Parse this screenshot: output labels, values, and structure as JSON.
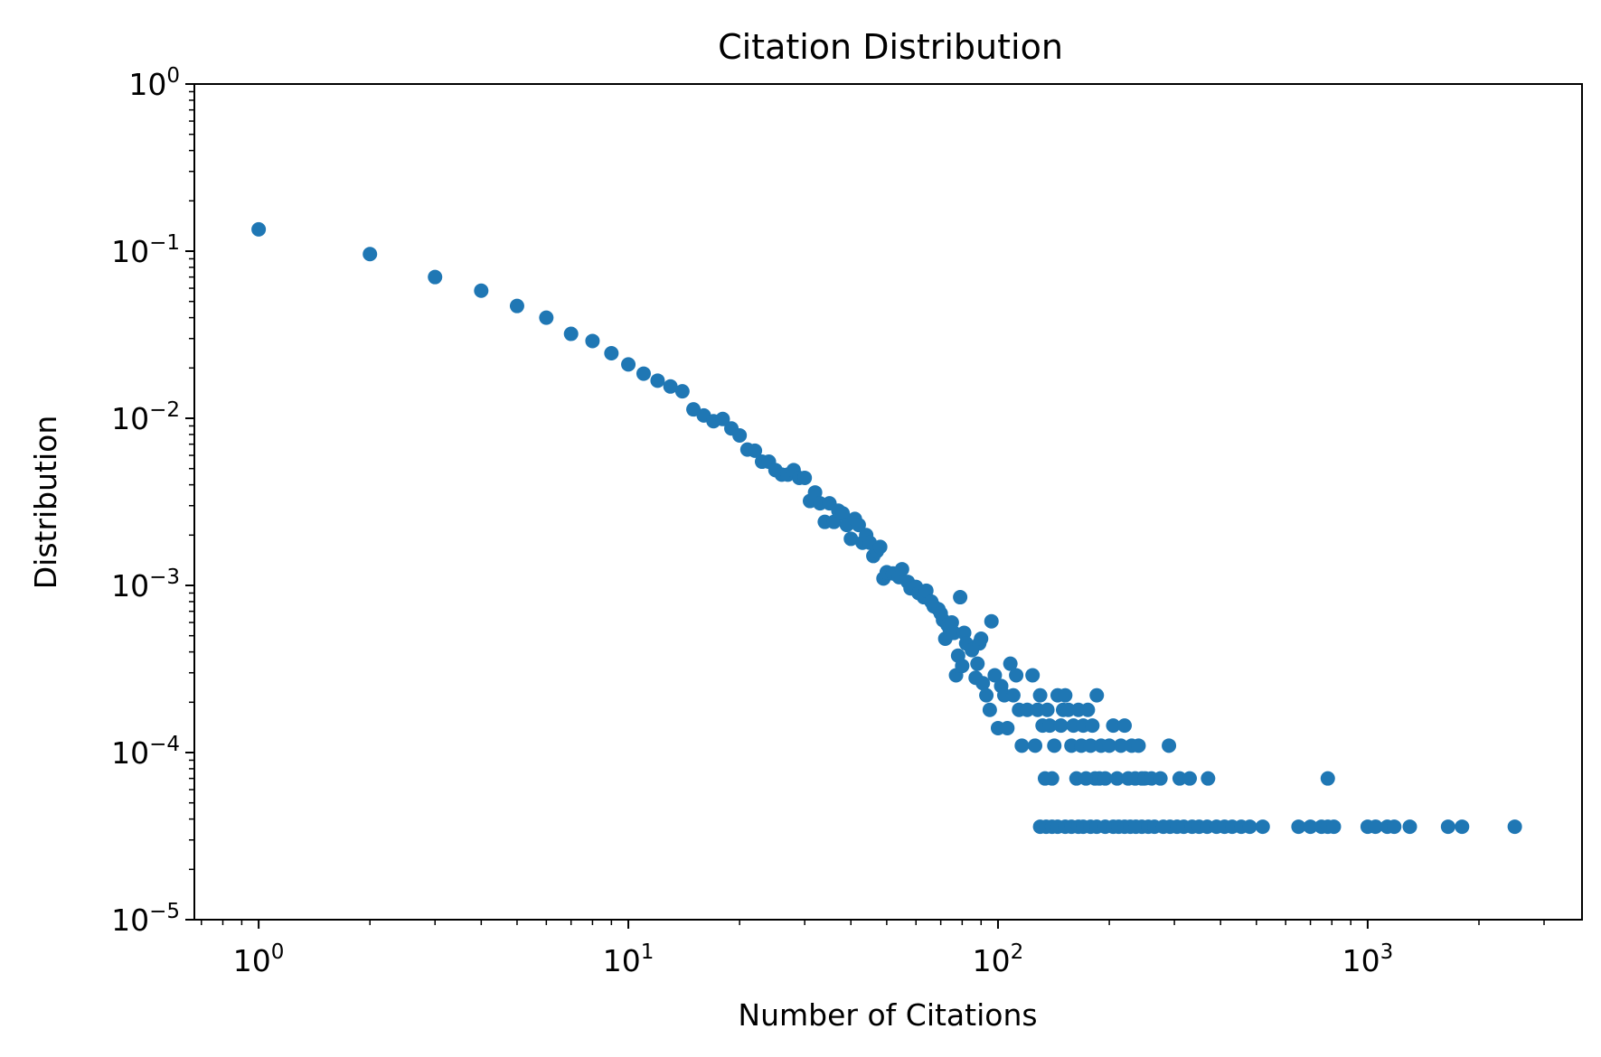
{
  "chart_data": {
    "type": "scatter",
    "title": "Citation Distribution",
    "xlabel": "Number of Citations",
    "ylabel": "Distribution",
    "xscale": "log",
    "yscale": "log",
    "xlim": [
      0.67,
      3800
    ],
    "ylim": [
      1e-05,
      1
    ],
    "grid": false,
    "legend": "none",
    "marker_color": "#1f77b4",
    "x_ticks": [
      {
        "base": "10",
        "exp": "0",
        "value": 1
      },
      {
        "base": "10",
        "exp": "1",
        "value": 10
      },
      {
        "base": "10",
        "exp": "2",
        "value": 100
      },
      {
        "base": "10",
        "exp": "3",
        "value": 1000
      }
    ],
    "y_ticks": [
      {
        "base": "10",
        "exp": "0",
        "value": 1
      },
      {
        "base": "10",
        "exp": "−1",
        "value": 0.1
      },
      {
        "base": "10",
        "exp": "−2",
        "value": 0.01
      },
      {
        "base": "10",
        "exp": "−3",
        "value": 0.001
      },
      {
        "base": "10",
        "exp": "−4",
        "value": 0.0001
      },
      {
        "base": "10",
        "exp": "−5",
        "value": 1e-05
      }
    ],
    "points": [
      [
        1,
        0.135
      ],
      [
        2,
        0.096
      ],
      [
        3,
        0.07
      ],
      [
        4,
        0.058
      ],
      [
        5,
        0.047
      ],
      [
        6,
        0.04
      ],
      [
        7,
        0.032
      ],
      [
        8,
        0.029
      ],
      [
        9,
        0.0245
      ],
      [
        10,
        0.021
      ],
      [
        11,
        0.0185
      ],
      [
        12,
        0.0168
      ],
      [
        13,
        0.0155
      ],
      [
        14,
        0.0145
      ],
      [
        15,
        0.0113
      ],
      [
        16,
        0.0104
      ],
      [
        17,
        0.0096
      ],
      [
        18,
        0.0099
      ],
      [
        19,
        0.0087
      ],
      [
        20,
        0.0079
      ],
      [
        21,
        0.0065
      ],
      [
        22,
        0.0064
      ],
      [
        23,
        0.0055
      ],
      [
        24,
        0.0055
      ],
      [
        25,
        0.0049
      ],
      [
        26,
        0.0046
      ],
      [
        27,
        0.0046
      ],
      [
        28,
        0.0049
      ],
      [
        29,
        0.0044
      ],
      [
        30,
        0.0044
      ],
      [
        31,
        0.0032
      ],
      [
        32,
        0.0036
      ],
      [
        33,
        0.0031
      ],
      [
        34,
        0.0024
      ],
      [
        35,
        0.0031
      ],
      [
        36,
        0.0024
      ],
      [
        37,
        0.0028
      ],
      [
        38,
        0.0027
      ],
      [
        39,
        0.0023
      ],
      [
        40,
        0.0019
      ],
      [
        41,
        0.0025
      ],
      [
        42,
        0.0023
      ],
      [
        43,
        0.0018
      ],
      [
        44,
        0.002
      ],
      [
        45,
        0.0018
      ],
      [
        46,
        0.0015
      ],
      [
        47,
        0.0016
      ],
      [
        48,
        0.0017
      ],
      [
        49,
        0.0011
      ],
      [
        50,
        0.0012
      ],
      [
        52,
        0.00118
      ],
      [
        54,
        0.00112
      ],
      [
        55,
        0.00125
      ],
      [
        57,
        0.00105
      ],
      [
        58,
        0.00096
      ],
      [
        60,
        0.00098
      ],
      [
        61,
        0.0009
      ],
      [
        63,
        0.00085
      ],
      [
        64,
        0.00093
      ],
      [
        66,
        0.0008
      ],
      [
        67,
        0.00075
      ],
      [
        69,
        0.00072
      ],
      [
        70,
        0.00068
      ],
      [
        71,
        0.00062
      ],
      [
        72,
        0.00048
      ],
      [
        73,
        0.00058
      ],
      [
        74,
        0.00055
      ],
      [
        75,
        0.0006
      ],
      [
        76,
        0.00052
      ],
      [
        77,
        0.00029
      ],
      [
        78,
        0.00038
      ],
      [
        79,
        0.00085
      ],
      [
        80,
        0.00033
      ],
      [
        81,
        0.00052
      ],
      [
        82,
        0.00045
      ],
      [
        85,
        0.00041
      ],
      [
        87,
        0.00028
      ],
      [
        88,
        0.00034
      ],
      [
        89,
        0.00045
      ],
      [
        90,
        0.00048
      ],
      [
        91,
        0.00026
      ],
      [
        93,
        0.00022
      ],
      [
        95,
        0.00018
      ],
      [
        96,
        0.00061
      ],
      [
        98,
        0.00029
      ],
      [
        100,
        0.00014
      ],
      [
        102,
        0.00025
      ],
      [
        104,
        0.00022
      ],
      [
        106,
        0.00014
      ],
      [
        108,
        0.00034
      ],
      [
        110,
        0.00022
      ],
      [
        112,
        0.00029
      ],
      [
        114,
        0.00018
      ],
      [
        116,
        0.00011
      ],
      [
        120,
        0.00018
      ],
      [
        124,
        0.00029
      ],
      [
        126,
        0.00011
      ],
      [
        128,
        0.00018
      ],
      [
        130,
        0.00022
      ],
      [
        132,
        0.000145
      ],
      [
        134,
        7e-05
      ],
      [
        136,
        0.00018
      ],
      [
        138,
        0.000145
      ],
      [
        140,
        7e-05
      ],
      [
        142,
        0.00011
      ],
      [
        145,
        0.00022
      ],
      [
        148,
        0.000145
      ],
      [
        150,
        0.00018
      ],
      [
        152,
        0.00022
      ],
      [
        155,
        0.00018
      ],
      [
        158,
        0.00011
      ],
      [
        160,
        0.000145
      ],
      [
        163,
        7e-05
      ],
      [
        165,
        0.00018
      ],
      [
        168,
        0.00011
      ],
      [
        170,
        0.000145
      ],
      [
        173,
        7e-05
      ],
      [
        175,
        0.00018
      ],
      [
        178,
        0.00011
      ],
      [
        180,
        0.000145
      ],
      [
        183,
        7e-05
      ],
      [
        185,
        0.00022
      ],
      [
        188,
        7e-05
      ],
      [
        190,
        0.00011
      ],
      [
        195,
        7e-05
      ],
      [
        200,
        0.00011
      ],
      [
        205,
        0.000145
      ],
      [
        210,
        7e-05
      ],
      [
        215,
        0.00011
      ],
      [
        220,
        0.000145
      ],
      [
        225,
        7e-05
      ],
      [
        230,
        0.00011
      ],
      [
        235,
        7e-05
      ],
      [
        240,
        0.00011
      ],
      [
        245,
        7e-05
      ],
      [
        250,
        7e-05
      ],
      [
        260,
        7e-05
      ],
      [
        275,
        7e-05
      ],
      [
        290,
        0.00011
      ],
      [
        310,
        7e-05
      ],
      [
        330,
        7e-05
      ],
      [
        370,
        7e-05
      ],
      [
        780,
        7e-05
      ],
      [
        130,
        3.6e-05
      ],
      [
        135,
        3.6e-05
      ],
      [
        140,
        3.6e-05
      ],
      [
        145,
        3.6e-05
      ],
      [
        152,
        3.6e-05
      ],
      [
        158,
        3.6e-05
      ],
      [
        165,
        3.6e-05
      ],
      [
        170,
        3.6e-05
      ],
      [
        178,
        3.6e-05
      ],
      [
        185,
        3.6e-05
      ],
      [
        195,
        3.6e-05
      ],
      [
        205,
        3.6e-05
      ],
      [
        212,
        3.6e-05
      ],
      [
        220,
        3.6e-05
      ],
      [
        228,
        3.6e-05
      ],
      [
        236,
        3.6e-05
      ],
      [
        245,
        3.6e-05
      ],
      [
        255,
        3.6e-05
      ],
      [
        265,
        3.6e-05
      ],
      [
        280,
        3.6e-05
      ],
      [
        292,
        3.6e-05
      ],
      [
        305,
        3.6e-05
      ],
      [
        318,
        3.6e-05
      ],
      [
        335,
        3.6e-05
      ],
      [
        350,
        3.6e-05
      ],
      [
        368,
        3.6e-05
      ],
      [
        390,
        3.6e-05
      ],
      [
        410,
        3.6e-05
      ],
      [
        430,
        3.6e-05
      ],
      [
        455,
        3.6e-05
      ],
      [
        480,
        3.6e-05
      ],
      [
        520,
        3.6e-05
      ],
      [
        650,
        3.6e-05
      ],
      [
        700,
        3.6e-05
      ],
      [
        750,
        3.6e-05
      ],
      [
        780,
        3.6e-05
      ],
      [
        810,
        3.6e-05
      ],
      [
        1000,
        3.6e-05
      ],
      [
        1050,
        3.6e-05
      ],
      [
        1130,
        3.6e-05
      ],
      [
        1180,
        3.6e-05
      ],
      [
        1300,
        3.6e-05
      ],
      [
        1650,
        3.6e-05
      ],
      [
        1800,
        3.6e-05
      ],
      [
        2500,
        3.6e-05
      ]
    ]
  }
}
